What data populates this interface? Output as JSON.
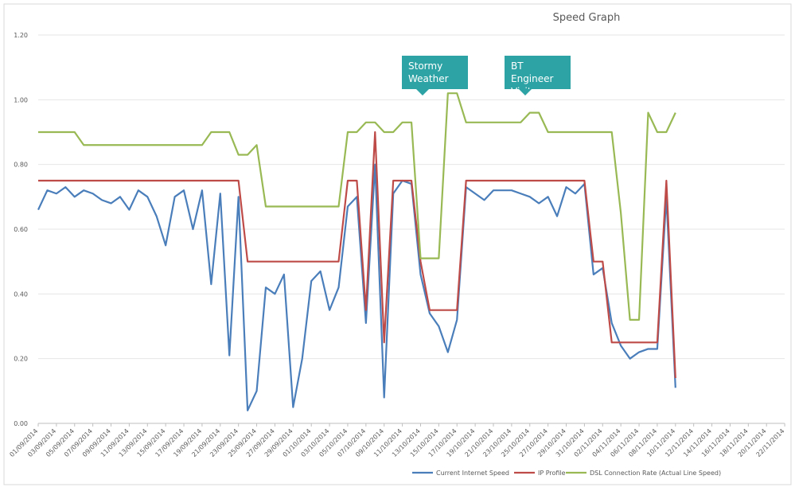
{
  "chart_data": {
    "type": "line",
    "title": "Speed Graph",
    "annotations": [
      "Stormy Weather",
      "BT Engineer Visit"
    ],
    "categories": [
      "01/09/2014",
      null,
      "03/09/2014",
      null,
      "05/09/2014",
      null,
      "07/09/2014",
      null,
      "09/09/2014",
      null,
      "11/09/2014",
      null,
      "13/09/2014",
      null,
      "15/09/2014",
      null,
      "17/09/2014",
      null,
      "19/09/2014",
      null,
      "21/09/2014",
      null,
      "23/09/2014",
      null,
      "25/09/2014",
      null,
      "27/09/2014",
      null,
      "29/09/2014",
      null,
      "01/10/2014",
      null,
      "03/10/2014",
      null,
      "05/10/2014",
      null,
      "07/10/2014",
      null,
      "09/10/2014",
      null,
      "11/10/2014",
      null,
      "13/10/2014",
      null,
      "15/10/2014",
      null,
      "17/10/2014",
      null,
      "19/10/2014",
      null,
      "21/10/2014",
      null,
      "23/10/2014",
      null,
      "25/10/2014",
      null,
      "27/10/2014",
      null,
      "29/10/2014",
      null,
      "31/10/2014",
      null,
      "02/11/2014",
      null,
      "04/11/2014",
      null,
      "06/11/2014",
      null,
      "08/11/2014",
      null,
      "10/11/2014",
      null,
      "12/11/2014",
      null,
      "14/11/2014",
      null,
      "16/11/2014",
      null,
      "18/11/2014",
      null,
      "20/11/2014",
      null,
      "22/11/2014"
    ],
    "series": [
      {
        "name": "Current Internet Speed",
        "color": "#4a7ebb",
        "values": [
          0.66,
          0.72,
          0.71,
          0.73,
          0.7,
          0.72,
          0.71,
          0.69,
          0.68,
          0.7,
          0.66,
          0.72,
          0.7,
          0.64,
          0.55,
          0.7,
          0.72,
          0.6,
          0.72,
          0.43,
          0.71,
          0.21,
          0.7,
          0.04,
          0.1,
          0.42,
          0.4,
          0.46,
          0.05,
          0.2,
          0.44,
          0.47,
          0.35,
          0.42,
          0.67,
          0.7,
          0.31,
          0.8,
          0.08,
          0.71,
          0.75,
          0.74,
          0.46,
          0.34,
          0.3,
          0.22,
          0.32,
          0.73,
          0.71,
          0.69,
          0.72,
          0.72,
          0.72,
          0.71,
          0.7,
          0.68,
          0.7,
          0.64,
          0.73,
          0.71,
          0.74,
          0.46,
          0.48,
          0.31,
          0.24,
          0.2,
          0.22,
          0.23,
          0.23,
          0.7,
          0.11,
          null,
          null,
          null,
          null,
          null,
          null,
          null,
          null,
          null,
          null,
          null,
          null
        ]
      },
      {
        "name": "IP Profile",
        "color": "#be4b48",
        "values": [
          0.75,
          0.75,
          0.75,
          0.75,
          0.75,
          0.75,
          0.75,
          0.75,
          0.75,
          0.75,
          0.75,
          0.75,
          0.75,
          0.75,
          0.75,
          0.75,
          0.75,
          0.75,
          0.75,
          0.75,
          0.75,
          0.75,
          0.75,
          0.5,
          0.5,
          0.5,
          0.5,
          0.5,
          0.5,
          0.5,
          0.5,
          0.5,
          0.5,
          0.5,
          0.75,
          0.75,
          0.35,
          0.9,
          0.25,
          0.75,
          0.75,
          0.75,
          0.5,
          0.35,
          0.35,
          0.35,
          0.35,
          0.75,
          0.75,
          0.75,
          0.75,
          0.75,
          0.75,
          0.75,
          0.75,
          0.75,
          0.75,
          0.75,
          0.75,
          0.75,
          0.75,
          0.5,
          0.5,
          0.25,
          0.25,
          0.25,
          0.25,
          0.25,
          0.25,
          0.75,
          0.14,
          null,
          null,
          null,
          null,
          null,
          null,
          null,
          null,
          null,
          null,
          null,
          null
        ]
      },
      {
        "name": "DSL Connection Rate (Actual Line Speed)",
        "color": "#98b954",
        "values": [
          0.9,
          0.9,
          0.9,
          0.9,
          0.9,
          0.86,
          0.86,
          0.86,
          0.86,
          0.86,
          0.86,
          0.86,
          0.86,
          0.86,
          0.86,
          0.86,
          0.86,
          0.86,
          0.86,
          0.9,
          0.9,
          0.9,
          0.83,
          0.83,
          0.86,
          0.67,
          0.67,
          0.67,
          0.67,
          0.67,
          0.67,
          0.67,
          0.67,
          0.67,
          0.9,
          0.9,
          0.93,
          0.93,
          0.9,
          0.9,
          0.93,
          0.93,
          0.51,
          0.51,
          0.51,
          1.02,
          1.02,
          0.93,
          0.93,
          0.93,
          0.93,
          0.93,
          0.93,
          0.93,
          0.96,
          0.96,
          0.9,
          0.9,
          0.9,
          0.9,
          0.9,
          0.9,
          0.9,
          0.9,
          0.65,
          0.32,
          0.32,
          0.96,
          0.9,
          0.9,
          0.96,
          null,
          null,
          null,
          null,
          null,
          null,
          null,
          null,
          null,
          null,
          null,
          null
        ]
      }
    ],
    "ylim": [
      0,
      1.2
    ],
    "yticks": [
      {
        "value": 0,
        "label": "0.00"
      },
      {
        "value": 0.2,
        "label": "0.20"
      },
      {
        "value": 0.4,
        "label": "0.40"
      },
      {
        "value": 0.6,
        "label": "0.60"
      },
      {
        "value": 0.8,
        "label": "0.80"
      },
      {
        "value": 1,
        "label": "1.00"
      },
      {
        "value": 1.2,
        "label": "1.20"
      }
    ],
    "grid": true,
    "legend": "bottom"
  }
}
